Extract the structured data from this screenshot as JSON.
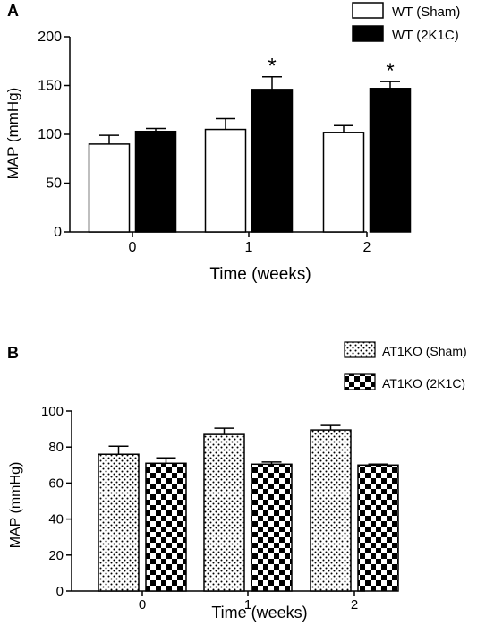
{
  "chart_data": [
    {
      "panel": "A",
      "type": "bar",
      "categories": [
        "0",
        "1",
        "2"
      ],
      "series": [
        {
          "name": "WT (Sham)",
          "values": [
            90,
            105,
            102
          ],
          "errors": [
            9,
            11,
            7
          ],
          "pattern": "white"
        },
        {
          "name": "WT (2K1C)",
          "values": [
            103,
            146,
            147
          ],
          "errors": [
            3,
            13,
            7
          ],
          "pattern": "black"
        }
      ],
      "significance": [
        {
          "category": "1",
          "series": "WT (2K1C)",
          "label": "*"
        },
        {
          "category": "2",
          "series": "WT (2K1C)",
          "label": "*"
        }
      ],
      "xlabel": "Time (weeks)",
      "ylabel": "MAP (mmHg)",
      "ylim": [
        0,
        200
      ],
      "yticks": [
        "0",
        "50",
        "100",
        "150",
        "200"
      ],
      "legend_placement": "top-right",
      "grid": false
    },
    {
      "panel": "B",
      "type": "bar",
      "categories": [
        "0",
        "1",
        "2"
      ],
      "series": [
        {
          "name": "AT1KO (Sham)",
          "values": [
            76,
            87,
            89.5
          ],
          "errors": [
            4.5,
            3.5,
            2.5
          ],
          "pattern": "dots"
        },
        {
          "name": "AT1KO (2K1C)",
          "values": [
            71,
            70.5,
            70
          ],
          "errors": [
            3,
            1.2,
            0.5
          ],
          "pattern": "checker"
        }
      ],
      "xlabel": "Time (weeks)",
      "ylabel": "MAP (mmHg)",
      "ylim": [
        0,
        100
      ],
      "yticks": [
        "0",
        "20",
        "40",
        "60",
        "80",
        "100"
      ],
      "legend_placement": "top-right",
      "grid": false
    }
  ]
}
